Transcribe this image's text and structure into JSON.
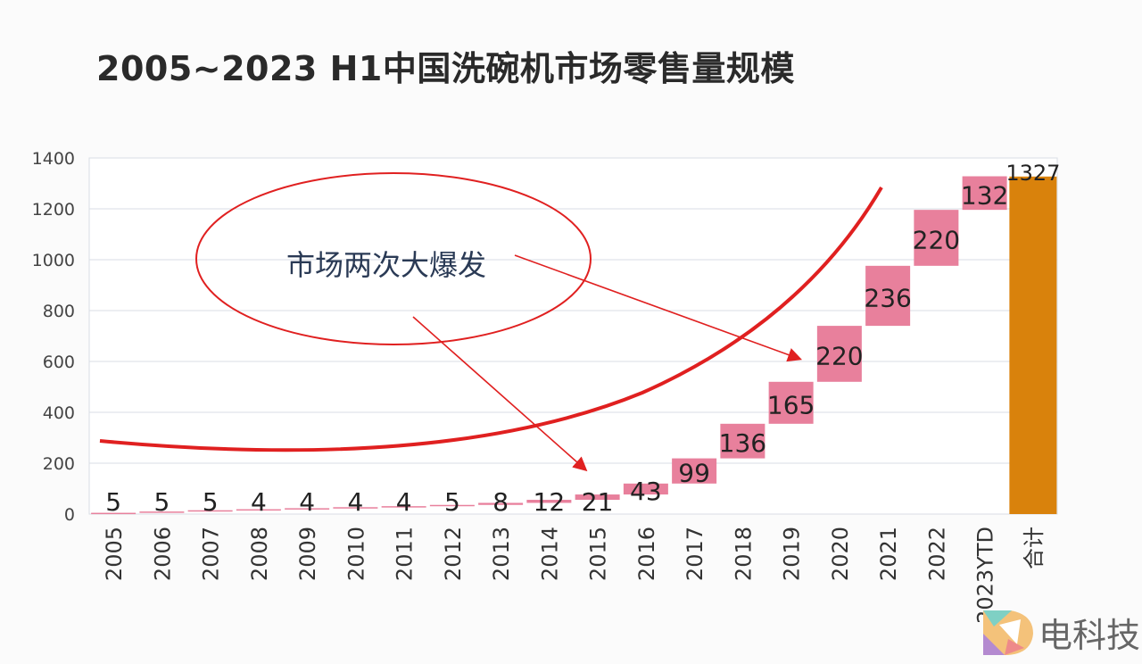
{
  "chart_data": {
    "type": "waterfall",
    "title": "2005~2023 H1中国洗碗机市场零售量规模",
    "categories": [
      "2005",
      "2006",
      "2007",
      "2008",
      "2009",
      "2010",
      "2011",
      "2012",
      "2013",
      "2014",
      "2015",
      "2016",
      "2017",
      "2018",
      "2019",
      "2020",
      "2021",
      "2022",
      "2023YTD",
      "合计"
    ],
    "values": [
      5,
      5,
      5,
      4,
      4,
      4,
      4,
      5,
      8,
      12,
      21,
      43,
      99,
      136,
      165,
      220,
      236,
      220,
      132,
      1327
    ],
    "total_category": "合计",
    "ylim": [
      0,
      1400
    ],
    "yticks": [
      0,
      200,
      400,
      600,
      800,
      1000,
      1200,
      1400
    ],
    "grid": true,
    "colors": {
      "increment": "#e8809c",
      "total": "#d9820c",
      "annotation": "#e02020"
    },
    "annotation": "市场两次大爆发"
  },
  "watermark": "电科技"
}
